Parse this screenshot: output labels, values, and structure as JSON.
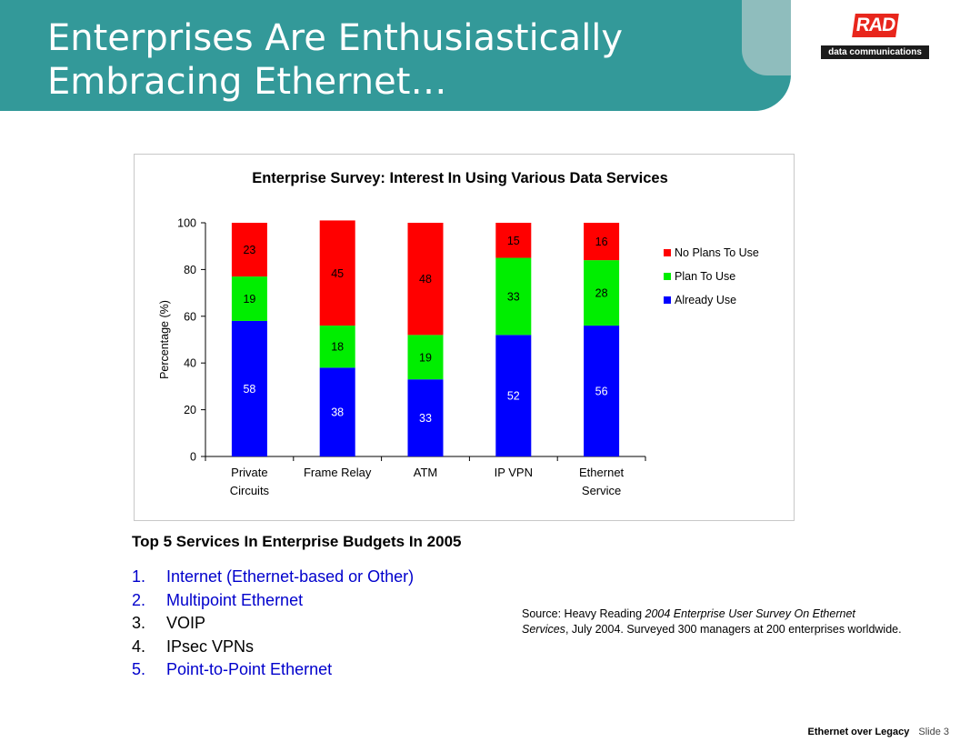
{
  "slide": {
    "title_line1": "Enterprises Are Enthusiastically",
    "title_line2": "Embracing Ethernet…",
    "logo_text": "RAD",
    "logo_subtext": "data communications"
  },
  "chart_data": {
    "type": "bar",
    "stacked": true,
    "title": "Enterprise Survey:  Interest In Using Various Data Services",
    "xlabel": "",
    "ylabel": "Percentage (%)",
    "ylim": [
      0,
      100
    ],
    "yticks": [
      "0",
      "20",
      "40",
      "60",
      "80",
      "100"
    ],
    "categories": [
      [
        "Private",
        "Circuits"
      ],
      [
        "Frame Relay"
      ],
      [
        "ATM"
      ],
      [
        "IP VPN"
      ],
      [
        "Ethernet",
        "Service"
      ]
    ],
    "series": [
      {
        "name": "Already Use",
        "values": [
          58,
          38,
          33,
          52,
          56
        ],
        "color": "#0000ff",
        "label_color": "#ffffff"
      },
      {
        "name": "Plan To Use",
        "values": [
          19,
          18,
          19,
          33,
          28
        ],
        "color": "#00ee00",
        "label_color": "#000000"
      },
      {
        "name": "No Plans To Use",
        "values": [
          23,
          45,
          48,
          15,
          16
        ],
        "color": "#ff0000",
        "label_color": "#000000"
      }
    ],
    "legend_position": "right"
  },
  "top5": {
    "title": "Top 5 Services In Enterprise Budgets In 2005",
    "items": [
      {
        "num": "1.",
        "label": "Internet (Ethernet-based or Other)",
        "color": "#0000cc"
      },
      {
        "num": "2.",
        "label": "Multipoint Ethernet",
        "color": "#0000cc"
      },
      {
        "num": "3.",
        "label": "VOIP",
        "color": "#000000"
      },
      {
        "num": "4.",
        "label": "IPsec VPNs",
        "color": "#000000"
      },
      {
        "num": "5.",
        "label": "Point-to-Point Ethernet",
        "color": "#0000cc"
      }
    ]
  },
  "source": {
    "prefix": "Source:  Heavy Reading ",
    "publication": "2004 Enterprise User Survey On Ethernet Services",
    "suffix": ", July 2004.  Surveyed 300 managers at 200 enterprises worldwide."
  },
  "footer": {
    "title": "Ethernet over Legacy",
    "slide": "Slide 3"
  },
  "colors": {
    "header": "#339999",
    "header_tab": "#8fbdbd",
    "logo_red": "#e8261c"
  }
}
